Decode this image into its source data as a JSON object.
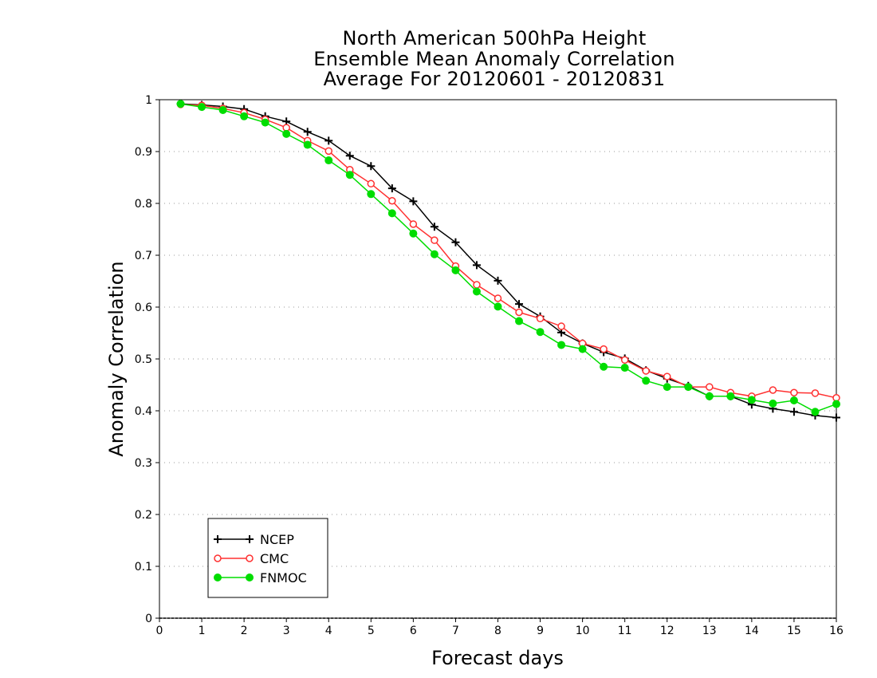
{
  "chart_data": {
    "type": "line",
    "title": [
      "North American 500hPa Height",
      "Ensemble Mean Anomaly Correlation",
      "Average For 20120601 - 20120831"
    ],
    "xlabel": "Forecast days",
    "ylabel": "Anomaly Correlation",
    "xlim": [
      0,
      16
    ],
    "ylim": [
      0,
      1
    ],
    "x_ticks": [
      "0",
      "1",
      "2",
      "3",
      "4",
      "5",
      "6",
      "7",
      "8",
      "9",
      "10",
      "11",
      "12",
      "13",
      "14",
      "15",
      "16"
    ],
    "y_ticks": [
      "0",
      "0.1",
      "0.2",
      "0.3",
      "0.4",
      "0.5",
      "0.6",
      "0.7",
      "0.8",
      "0.9",
      "1"
    ],
    "grid": "horizontal dotted",
    "legend_position": "bottom-left",
    "x": [
      0.5,
      1,
      1.5,
      2,
      2.5,
      3,
      3.5,
      4,
      4.5,
      5,
      5.5,
      6,
      6.5,
      7,
      7.5,
      8,
      8.5,
      9,
      9.5,
      10,
      10.5,
      11,
      11.5,
      12,
      12.5,
      13,
      13.5,
      14,
      14.5,
      15,
      15.5,
      16
    ],
    "series": [
      {
        "name": "NCEP",
        "color": "#000000",
        "marker": "plus",
        "values": [
          0.992,
          0.99,
          0.987,
          0.982,
          0.968,
          0.958,
          0.938,
          0.921,
          0.892,
          0.872,
          0.829,
          0.804,
          0.755,
          0.725,
          0.681,
          0.651,
          0.606,
          0.582,
          0.551,
          0.53,
          0.513,
          0.501,
          0.478,
          0.462,
          0.448,
          0.428,
          0.428,
          0.412,
          0.404,
          0.398,
          0.391,
          0.387
        ]
      },
      {
        "name": "CMC",
        "color": "#ff3030",
        "marker": "open-circle",
        "values": [
          0.991,
          0.989,
          0.983,
          0.975,
          0.962,
          0.946,
          0.921,
          0.901,
          0.865,
          0.838,
          0.805,
          0.76,
          0.729,
          0.679,
          0.643,
          0.617,
          0.59,
          0.578,
          0.563,
          0.53,
          0.519,
          0.498,
          0.477,
          0.466,
          0.446,
          0.446,
          0.435,
          0.428,
          0.44,
          0.435,
          0.434,
          0.425
        ]
      },
      {
        "name": "FNMOC",
        "color": "#00dd00",
        "marker": "filled-circle",
        "values": [
          0.992,
          0.986,
          0.98,
          0.968,
          0.956,
          0.934,
          0.913,
          0.883,
          0.855,
          0.818,
          0.781,
          0.742,
          0.702,
          0.671,
          0.63,
          0.601,
          0.573,
          0.552,
          0.527,
          0.519,
          0.485,
          0.483,
          0.458,
          0.446,
          0.446,
          0.428,
          0.428,
          0.421,
          0.414,
          0.42,
          0.398,
          0.413
        ]
      }
    ]
  }
}
